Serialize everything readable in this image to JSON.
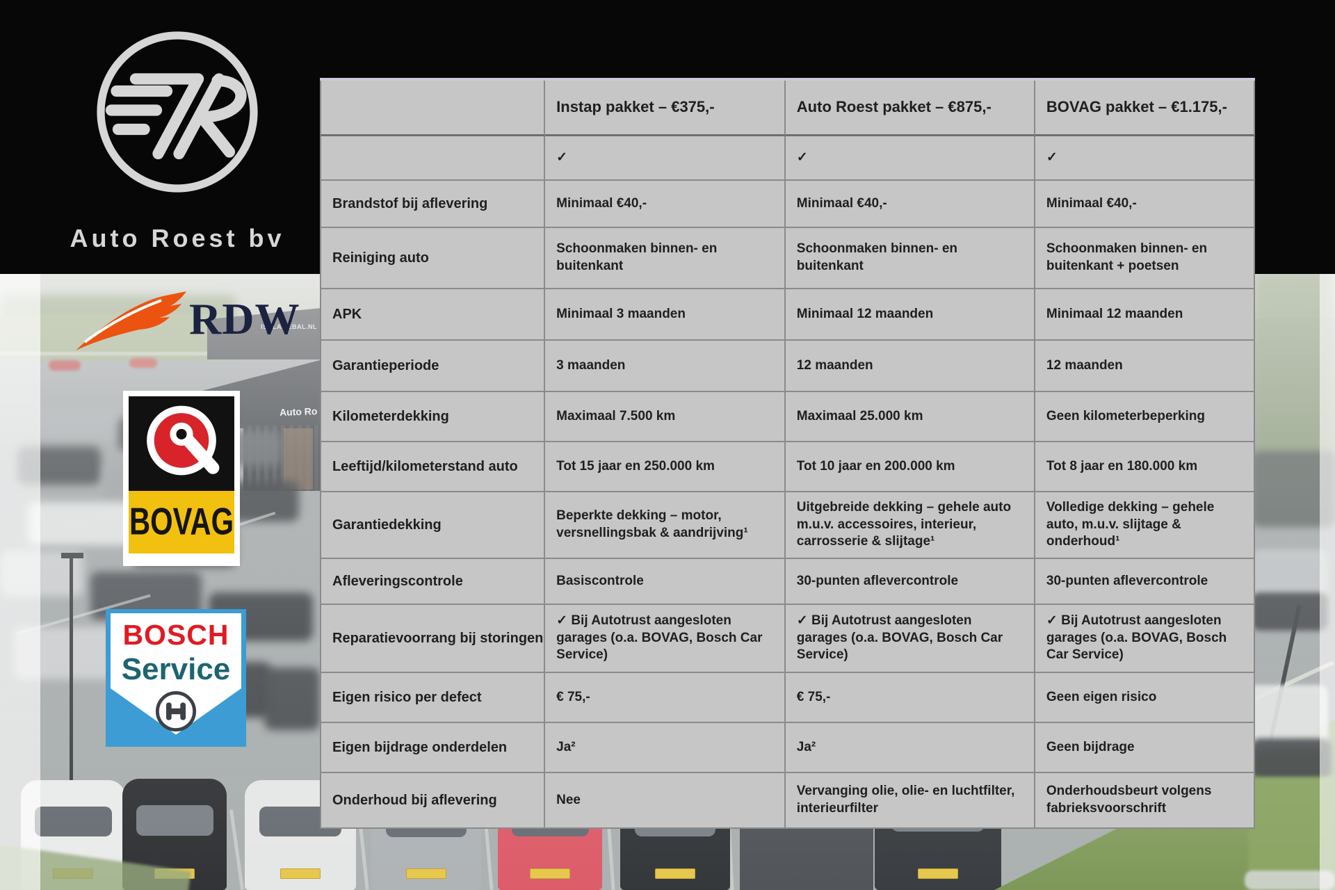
{
  "logos": {
    "auto_roest": "Auto Roest bv",
    "rdw": "RDW",
    "bovag": "BOVAG",
    "bosch_line1": "BOSCH",
    "bosch_line2": "Service"
  },
  "photo_signs": {
    "building_small_sign": "ISOLATIEBAL.NL",
    "building_roof_sign": "Auto Ro"
  },
  "colors": {
    "table_bg": "#c6c6c6",
    "table_grid": "#8a8a8a",
    "table_text": "#1f1f1f",
    "accent_top_border": "#cdc8dc",
    "rdw_orange": "#ec5310",
    "bovag_yellow": "#f2c00e",
    "bovag_red": "#d8232a",
    "bosch_blue": "#3d9cd3",
    "bosch_red": "#e11b22",
    "bosch_teal": "#1d6470"
  },
  "table": {
    "columns": [
      "",
      "Instap pakket – €375,-",
      "Auto Roest pakket – €875,-",
      "BOVAG pakket – €1.175,-"
    ],
    "rows": [
      {
        "label": "",
        "values": [
          "✓",
          "✓",
          "✓"
        ]
      },
      {
        "label": "Brandstof bij aflevering",
        "values": [
          "Minimaal €40,-",
          "Minimaal €40,-",
          "Minimaal €40,-"
        ]
      },
      {
        "label": "Reiniging auto",
        "values": [
          "Schoonmaken binnen- en buitenkant",
          "Schoonmaken binnen- en buitenkant",
          "Schoonmaken binnen- en buitenkant + poetsen"
        ]
      },
      {
        "label": "APK",
        "values": [
          "Minimaal 3 maanden",
          "Minimaal 12 maanden",
          "Minimaal 12 maanden"
        ]
      },
      {
        "label": "Garantieperiode",
        "values": [
          "3 maanden",
          "12 maanden",
          "12 maanden"
        ]
      },
      {
        "label": "Kilometerdekking",
        "values": [
          "Maximaal 7.500 km",
          "Maximaal 25.000 km",
          "Geen kilometerbeperking"
        ]
      },
      {
        "label": "Leeftijd/kilometerstand auto",
        "values": [
          "Tot 15 jaar en 250.000 km",
          "Tot 10 jaar en 200.000 km",
          "Tot 8 jaar en 180.000 km"
        ]
      },
      {
        "label": "Garantiedekking",
        "values": [
          "Beperkte dekking – motor, versnellingsbak & aandrijving¹",
          "Uitgebreide dekking – gehele auto m.u.v. accessoires, interieur, carrosserie & slijtage¹",
          "Volledige dekking – gehele auto, m.u.v. slijtage & onderhoud¹"
        ]
      },
      {
        "label": "Afleveringscontrole",
        "values": [
          "Basiscontrole",
          "30-punten aflevercontrole",
          "30-punten aflevercontrole"
        ]
      },
      {
        "label": "Reparatievoorrang bij storingen",
        "values": [
          "✓ Bij Autotrust aangesloten garages (o.a. BOVAG, Bosch Car Service)",
          "✓ Bij Autotrust aangesloten garages (o.a. BOVAG, Bosch Car Service)",
          "✓ Bij Autotrust aangesloten garages (o.a. BOVAG, Bosch Car Service)"
        ]
      },
      {
        "label": "Eigen risico per defect",
        "values": [
          "€ 75,-",
          "€ 75,-",
          "Geen eigen risico"
        ]
      },
      {
        "label": "Eigen bijdrage onderdelen",
        "values": [
          "Ja²",
          "Ja²",
          "Geen bijdrage"
        ]
      },
      {
        "label": "Onderhoud bij aflevering",
        "values": [
          "Nee",
          "Vervanging olie, olie- en luchtfilter, interieurfilter",
          "Onderhoudsbeurt volgens fabrieksvoorschrift"
        ]
      }
    ]
  }
}
